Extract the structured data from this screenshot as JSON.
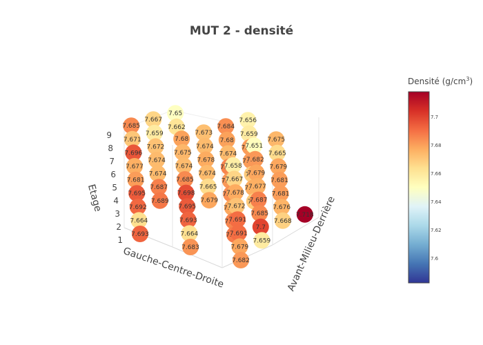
{
  "chart_data": {
    "type": "scatter3d",
    "title": "MUT 2 - densité",
    "axes": {
      "x": {
        "title": "Gauche-Centre-Droite"
      },
      "y": {
        "title": "Avant-Milieu-Derrière"
      },
      "z": {
        "title": "Etage",
        "ticks": [
          "1",
          "2",
          "3",
          "4",
          "5",
          "6",
          "7",
          "8",
          "9"
        ]
      }
    },
    "colorbar": {
      "title": "Densité (g/cm",
      "title_sup": "3",
      "title_end": ")",
      "range": [
        7.583,
        7.718
      ],
      "ticks": [
        "7.6",
        "7.62",
        "7.64",
        "7.66",
        "7.68",
        "7.7"
      ],
      "colorscale": [
        "#313695",
        "#4575b4",
        "#74add1",
        "#abd9e9",
        "#e0f3f8",
        "#ffffbf",
        "#fee090",
        "#fdae61",
        "#f46d43",
        "#d73027",
        "#a50026"
      ]
    },
    "columns": [
      {
        "x": 1,
        "y": 1,
        "values": [
          7.693,
          7.664,
          7.692,
          7.695,
          7.681,
          7.677,
          7.696,
          7.671,
          7.685
        ]
      },
      {
        "x": 2,
        "y": 1,
        "values": [
          7.683,
          7.664,
          7.693,
          7.695,
          7.698,
          7.685,
          7.674,
          7.675,
          7.68
        ]
      },
      {
        "x": 3,
        "y": 1,
        "values": [
          7.682,
          7.679,
          7.691,
          7.691,
          7.672,
          7.678,
          7.667,
          7.658,
          null
        ]
      },
      {
        "x": 1,
        "y": 2,
        "values": [
          null,
          null,
          7.689,
          7.687,
          7.674,
          7.674,
          7.672,
          7.659,
          7.667
        ]
      },
      {
        "x": 2,
        "y": 2,
        "values": [
          null,
          null,
          null,
          7.679,
          7.665,
          7.674,
          7.678,
          7.674,
          7.673
        ]
      },
      {
        "x": 3,
        "y": 2,
        "values": [
          null,
          7.659,
          7.7,
          7.685,
          7.687,
          7.677,
          7.679,
          7.682,
          7.651
        ]
      },
      {
        "x": 1,
        "y": 3,
        "values": [
          null,
          null,
          null,
          null,
          null,
          null,
          null,
          7.662,
          7.65
        ]
      },
      {
        "x": 2,
        "y": 3,
        "values": [
          7.688,
          7.686,
          7.679,
          7.684,
          7.682,
          7.686,
          7.674,
          7.68,
          7.684
        ]
      },
      {
        "x": 3,
        "y": 3,
        "values": [
          null,
          null,
          7.668,
          7.676,
          7.681,
          7.681,
          7.679,
          7.665,
          7.675
        ]
      },
      {
        "x": 2,
        "y": 4,
        "values": [
          null,
          null,
          7.67,
          7.677,
          7.67,
          7.681,
          7.681,
          7.659,
          7.656
        ]
      },
      {
        "x": 3,
        "y": 4,
        "values": [
          null,
          null,
          7.718,
          null,
          null,
          null,
          null,
          null,
          null
        ]
      }
    ]
  }
}
